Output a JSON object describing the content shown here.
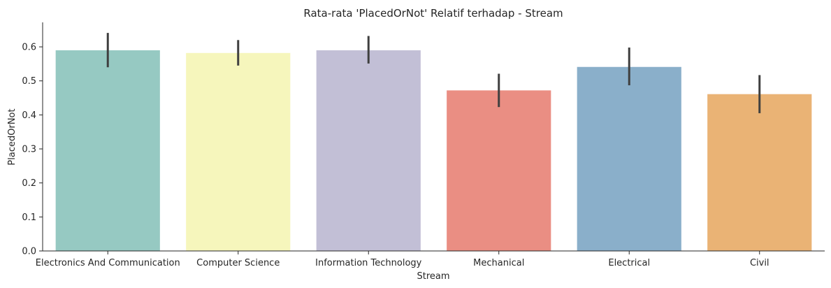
{
  "chart_data": {
    "type": "bar",
    "title": "Rata-rata 'PlacedOrNot' Relatif terhadap - Stream",
    "xlabel": "Stream",
    "ylabel": "PlacedOrNot",
    "categories": [
      "Electronics And Communication",
      "Computer Science",
      "Information Technology",
      "Mechanical",
      "Electrical",
      "Civil"
    ],
    "values": [
      0.59,
      0.582,
      0.59,
      0.472,
      0.541,
      0.461
    ],
    "error_low": [
      0.54,
      0.545,
      0.551,
      0.423,
      0.487,
      0.405
    ],
    "error_high": [
      0.641,
      0.62,
      0.632,
      0.521,
      0.598,
      0.517
    ],
    "colors": [
      "#96c9c2",
      "#f6f6bc",
      "#c2bfd6",
      "#ea8e83",
      "#8aafca",
      "#eab375"
    ],
    "ylim": [
      0,
      0.672
    ],
    "yticks": [
      0.0,
      0.1,
      0.2,
      0.3,
      0.4,
      0.5,
      0.6
    ],
    "ytick_labels": [
      "0.0",
      "0.1",
      "0.2",
      "0.3",
      "0.4",
      "0.5",
      "0.6"
    ],
    "grid": false,
    "legend": "none"
  }
}
